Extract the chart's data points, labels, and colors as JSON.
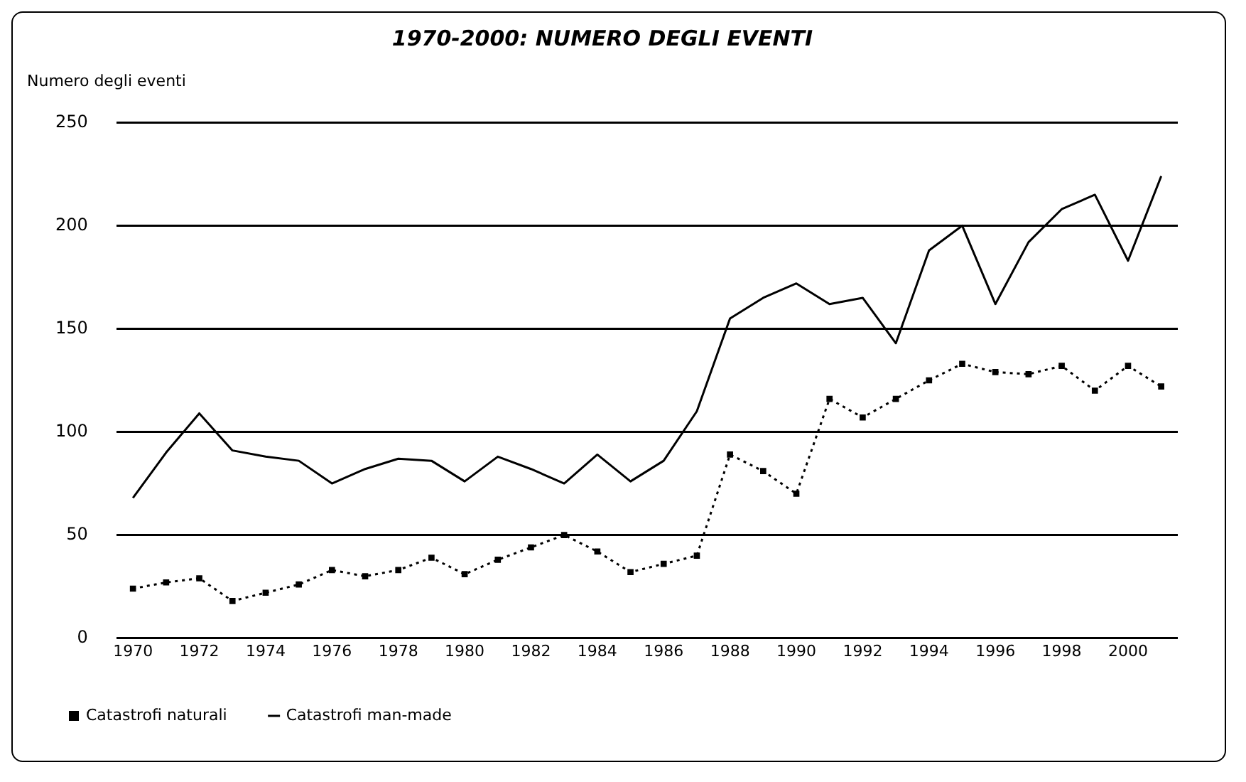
{
  "chart_data": {
    "type": "line",
    "title": "1970-2000: NUMERO DEGLI EVENTI",
    "ylabel": "Numero degli eventi",
    "categories": [
      "1970",
      null,
      "1972",
      null,
      "1974",
      null,
      "1976",
      null,
      "1978",
      null,
      "1980",
      null,
      "1982",
      null,
      "1984",
      null,
      "1986",
      null,
      "1988",
      null,
      "1990",
      null,
      "1992",
      null,
      "1994",
      null,
      "1996",
      null,
      "1998",
      null,
      "2000",
      null
    ],
    "series": [
      {
        "name": "Catastrofi naturali",
        "color": "#000000",
        "marker": "square",
        "line_style": "dotted",
        "values": [
          24,
          27,
          29,
          18,
          22,
          26,
          33,
          30,
          33,
          39,
          31,
          38,
          44,
          50,
          42,
          32,
          36,
          40,
          89,
          81,
          70,
          116,
          107,
          116,
          125,
          133,
          129,
          128,
          132,
          120,
          132,
          122
        ]
      },
      {
        "name": "Catastrofi man-made",
        "color": "#000000",
        "marker": "none",
        "line_style": "solid",
        "values": [
          68,
          90,
          109,
          91,
          88,
          86,
          75,
          82,
          87,
          86,
          76,
          88,
          82,
          75,
          89,
          76,
          86,
          110,
          155,
          165,
          172,
          162,
          165,
          143,
          188,
          200,
          162,
          192,
          208,
          215,
          183,
          224
        ]
      }
    ],
    "ylim": [
      0,
      250
    ],
    "yticks": [
      0,
      50,
      100,
      150,
      200,
      250
    ],
    "grid": "y",
    "legend": "bottom left"
  }
}
